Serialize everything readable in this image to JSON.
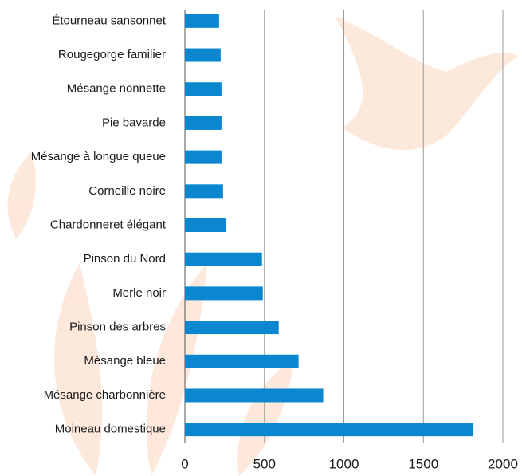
{
  "chart_data": {
    "type": "barh",
    "categories": [
      "Étourneau sansonnet",
      "Rougegorge familier",
      "Mésange nonnette",
      "Pie bavarde",
      "Mésange à longue queue",
      "Corneille noire",
      "Chardonneret élégant",
      "Pinson du Nord",
      "Merle noir",
      "Pinson des arbres",
      "Mésange bleue",
      "Mésange charbonnière",
      "Moineau domestique"
    ],
    "values": [
      215,
      225,
      230,
      230,
      230,
      240,
      260,
      485,
      490,
      590,
      715,
      870,
      1815
    ],
    "color": "#0b87cf",
    "xlim": [
      0,
      2000
    ],
    "xticks": [
      0,
      500,
      1000,
      1500,
      2000
    ],
    "grid": true
  }
}
